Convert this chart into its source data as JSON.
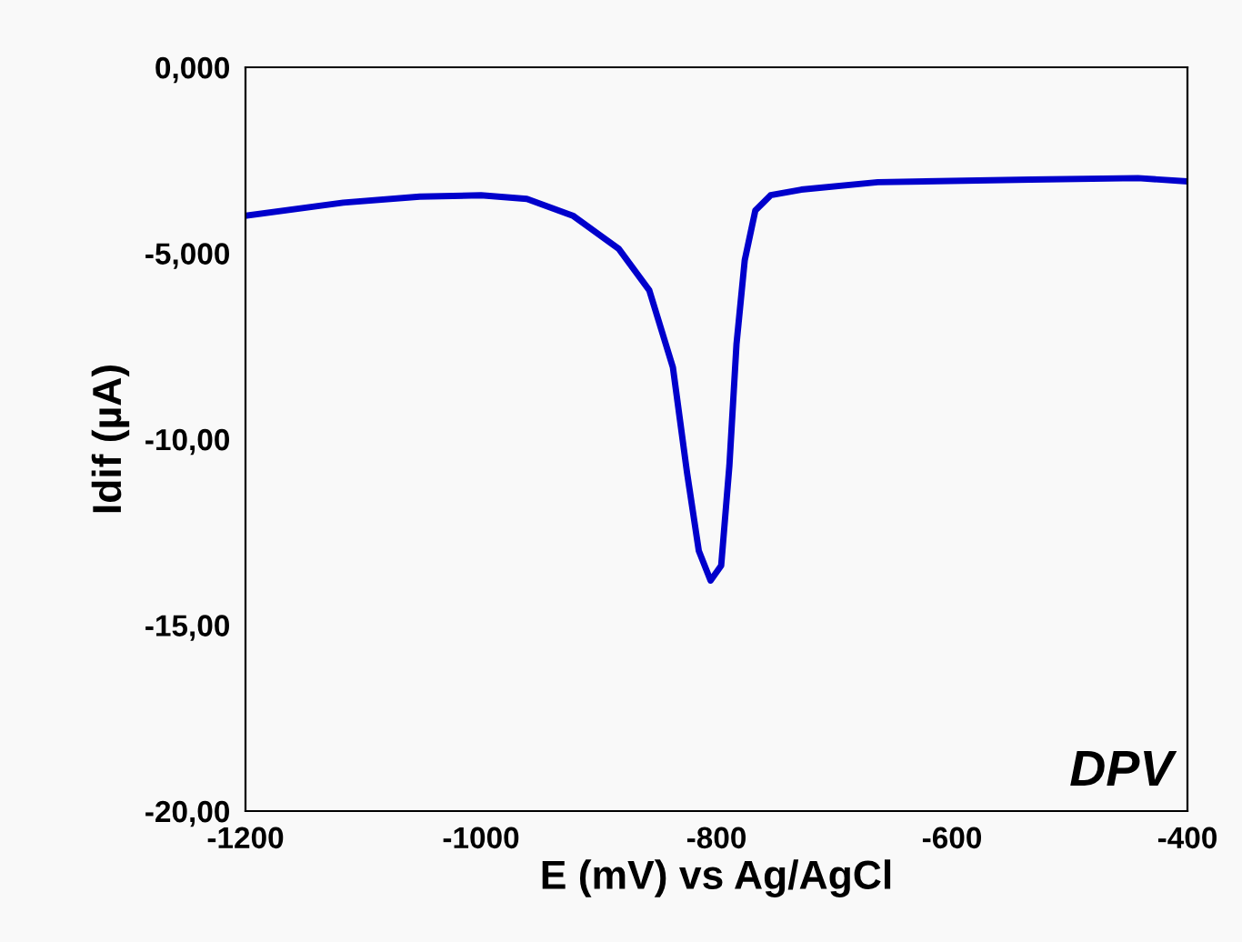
{
  "chart_data": {
    "type": "line",
    "xlabel": "E (mV) vs Ag/AgCl",
    "ylabel": "Idif (µA)",
    "annotations": [
      "DPV"
    ],
    "x": [
      -1200,
      -1117,
      -1052,
      -1000,
      -961,
      -922,
      -883,
      -857,
      -837,
      -825,
      -815,
      -805,
      -796,
      -789,
      -783,
      -776,
      -767,
      -754,
      -728,
      -663,
      -533,
      -442,
      -400
    ],
    "series": [
      {
        "color": "#0000cc",
        "values": [
          -3.99,
          -3.64,
          -3.48,
          -3.44,
          -3.54,
          -3.99,
          -4.88,
          -6.0,
          -8.07,
          -10.9,
          -13.0,
          -13.8,
          -13.4,
          -10.7,
          -7.45,
          -5.19,
          -3.85,
          -3.44,
          -3.29,
          -3.09,
          -3.02,
          -2.98,
          -3.07
        ]
      }
    ],
    "xlim": [
      -1200,
      -400
    ],
    "xticks": [
      -1200,
      -1000,
      -800,
      -600,
      -400
    ],
    "ylim": [
      -20,
      0
    ],
    "yticks": [
      {
        "value": 0,
        "label": "0,000"
      },
      {
        "value": -5,
        "label": "-5,000"
      },
      {
        "value": -10,
        "label": "-10,00"
      },
      {
        "value": -15,
        "label": "-15,00"
      },
      {
        "value": -20,
        "label": "-20,00"
      }
    ],
    "grid": false,
    "legend": false,
    "marker": "none",
    "line_style": "solid"
  }
}
